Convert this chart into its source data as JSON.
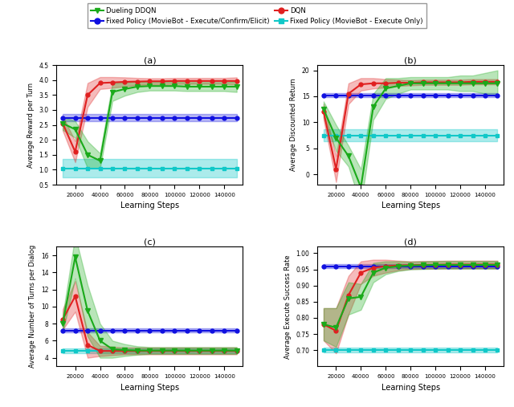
{
  "x_steps": [
    10000,
    20000,
    30000,
    40000,
    50000,
    60000,
    70000,
    80000,
    90000,
    100000,
    110000,
    120000,
    130000,
    140000,
    150000
  ],
  "colors": {
    "dueling_ddqn": "#1aaa1a",
    "dqn": "#e02020",
    "fixed_blue": "#1010e0",
    "fixed_cyan": "#10c8c8"
  },
  "subplot_a": {
    "ylabel": "Average Reward per Turn",
    "xlabel": "Learning Steps",
    "title": "(a)",
    "ylim": [
      0.5,
      4.5
    ],
    "yticks": [
      0.5,
      1.0,
      1.5,
      2.0,
      2.5,
      3.0,
      3.5,
      4.0,
      4.5
    ],
    "dqn_mean": [
      2.55,
      1.6,
      3.5,
      3.9,
      3.92,
      3.94,
      3.95,
      3.96,
      3.96,
      3.97,
      3.97,
      3.97,
      3.97,
      3.97,
      3.97
    ],
    "dqn_std": [
      0.25,
      0.35,
      0.4,
      0.2,
      0.18,
      0.15,
      0.12,
      0.1,
      0.1,
      0.1,
      0.1,
      0.1,
      0.1,
      0.1,
      0.12
    ],
    "ddqn_mean": [
      2.55,
      2.35,
      1.5,
      1.3,
      3.6,
      3.7,
      3.78,
      3.8,
      3.8,
      3.8,
      3.78,
      3.78,
      3.78,
      3.78,
      3.78
    ],
    "ddqn_std": [
      0.22,
      0.28,
      0.45,
      0.25,
      0.3,
      0.22,
      0.18,
      0.15,
      0.15,
      0.15,
      0.15,
      0.15,
      0.15,
      0.15,
      0.18
    ],
    "blue_mean": 2.74,
    "blue_std": 0.12,
    "cyan_mean": 1.05,
    "cyan_std": 0.32
  },
  "subplot_b": {
    "ylabel": "Average Discounted Return",
    "xlabel": "Learning Steps",
    "title": "(b)",
    "ylim": [
      -2,
      21
    ],
    "yticks": [
      0,
      5,
      10,
      15,
      20
    ],
    "dqn_mean": [
      12.0,
      1.0,
      15.5,
      17.3,
      17.5,
      17.5,
      17.6,
      17.6,
      17.7,
      17.7,
      17.7,
      17.7,
      17.8,
      17.8,
      17.8
    ],
    "dqn_std": [
      1.5,
      2.5,
      2.0,
      1.2,
      1.0,
      0.8,
      0.6,
      0.5,
      0.5,
      0.5,
      0.5,
      0.5,
      0.5,
      0.5,
      0.5
    ],
    "ddqn_mean": [
      12.5,
      7.0,
      3.5,
      -2.5,
      13.0,
      16.5,
      17.0,
      17.5,
      17.5,
      17.5,
      17.5,
      17.5,
      17.5,
      17.5,
      17.5
    ],
    "ddqn_std": [
      1.5,
      2.5,
      2.0,
      3.5,
      2.5,
      2.0,
      1.5,
      1.2,
      1.2,
      1.2,
      1.2,
      1.5,
      1.5,
      2.0,
      2.5
    ],
    "blue_mean": 15.2,
    "blue_std": 0.35,
    "cyan_mean": 7.5,
    "cyan_std": 1.2
  },
  "subplot_c": {
    "ylabel": "Average Number of Turns per Dialog",
    "xlabel": "Learning Steps",
    "title": "(c)",
    "ylim": [
      3,
      17
    ],
    "yticks": [
      4,
      6,
      8,
      10,
      12,
      14,
      16
    ],
    "dqn_mean": [
      8.5,
      11.2,
      5.5,
      4.8,
      4.8,
      4.8,
      4.8,
      4.8,
      4.8,
      4.8,
      4.8,
      4.8,
      4.8,
      4.8,
      4.8
    ],
    "dqn_std": [
      1.2,
      1.8,
      1.5,
      0.6,
      0.5,
      0.4,
      0.4,
      0.4,
      0.4,
      0.4,
      0.4,
      0.4,
      0.4,
      0.4,
      0.4
    ],
    "ddqn_mean": [
      8.0,
      15.8,
      9.5,
      6.0,
      5.0,
      4.9,
      4.85,
      4.85,
      4.85,
      4.85,
      4.85,
      4.85,
      4.85,
      4.85,
      4.85
    ],
    "ddqn_std": [
      1.0,
      2.5,
      3.0,
      2.0,
      1.0,
      0.7,
      0.5,
      0.4,
      0.4,
      0.4,
      0.4,
      0.4,
      0.4,
      0.4,
      0.4
    ],
    "blue_mean": 7.2,
    "blue_std": 0.25,
    "cyan_mean": 4.8,
    "cyan_std": 0.25
  },
  "subplot_d": {
    "ylabel": "Average Execute Success Rate",
    "xlabel": "Learning Steps",
    "title": "(d)",
    "ylim": [
      0.65,
      1.02
    ],
    "yticks": [
      0.7,
      0.75,
      0.8,
      0.85,
      0.9,
      0.95,
      1.0
    ],
    "dqn_mean": [
      0.78,
      0.76,
      0.87,
      0.94,
      0.955,
      0.96,
      0.962,
      0.963,
      0.964,
      0.964,
      0.965,
      0.965,
      0.965,
      0.965,
      0.965
    ],
    "dqn_std": [
      0.05,
      0.07,
      0.06,
      0.035,
      0.025,
      0.02,
      0.015,
      0.012,
      0.012,
      0.012,
      0.012,
      0.012,
      0.012,
      0.012,
      0.012
    ],
    "ddqn_mean": [
      0.78,
      0.77,
      0.86,
      0.865,
      0.94,
      0.955,
      0.96,
      0.962,
      0.963,
      0.964,
      0.964,
      0.964,
      0.964,
      0.964,
      0.964
    ],
    "ddqn_std": [
      0.05,
      0.06,
      0.05,
      0.04,
      0.03,
      0.02,
      0.015,
      0.012,
      0.012,
      0.012,
      0.012,
      0.012,
      0.012,
      0.012,
      0.012
    ],
    "blue_mean": 0.96,
    "blue_std": 0.006,
    "cyan_mean": 0.7,
    "cyan_std": 0.008
  },
  "legend": {
    "ddqn_label": "Dueling DDQN",
    "dqn_label": "DQN",
    "blue_label": "Fixed Policy (MovieBot - Execute/Confirm/Elicit)",
    "cyan_label": "Fixed Policy (MovieBot - Execute Only)"
  }
}
